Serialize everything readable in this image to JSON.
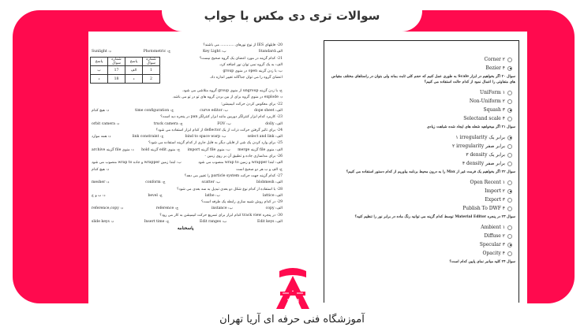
{
  "brand_color": "#ff0a4e",
  "title": "سوالات تری دی مکس با جواب",
  "footer": "آموزشگاه فنی حرفه ای آریا تهران",
  "logo_text": "آریا تهران",
  "left_page": {
    "lines": [
      {
        "t": "q",
        "text": "20- فایلهای IES از نوع نورهای ............ می باشند؟"
      },
      {
        "t": "c",
        "items": [
          "الف:Standard",
          "ب: Key Light",
          "ج: Photometric",
          "د: Sunlight"
        ]
      },
      {
        "t": "q",
        "text": "21- کدام گزینه در مورد اعضای یک گروه صحیح نیست؟"
      },
      {
        "t": "q",
        "text": "الف: به یک گروه نمی توان نور اضافه کرد."
      },
      {
        "t": "q",
        "text": "ب: با زدن گزینه open در منوی group"
      },
      {
        "t": "q",
        "text": "اعضای گروه را می توان جداگانه تغییر اندازه داد."
      },
      {
        "t": "q",
        "text": ""
      },
      {
        "t": "q",
        "text": "ج: با زدن گزینه ungroup از منوی group گروه متلاشی می شود."
      },
      {
        "t": "q",
        "text": "د: explode در منوی گروه برای از بین بردن گروه های تو در تو می باشد."
      },
      {
        "t": "q",
        "text": "22- برای معکوس کردن حرکت انیمیشن؛"
      },
      {
        "t": "c",
        "items": [
          "الف: dope sheet",
          "ب: curve editor",
          "ج: time configuration",
          "د: هیچ کدام"
        ]
      },
      {
        "t": "q",
        "text": "23- کاربرد کدام ابزار کنترلگر دوربین مانند ابزار کنترلگر pan در پنجره دید است؟"
      },
      {
        "t": "c",
        "items": [
          "الف: dolly",
          "ب: FOV",
          "ج: truck camera",
          "د: orbit camera"
        ]
      },
      {
        "t": "q",
        "text": "24- برای تاثیر گرفتن حرکت ذرات از یک deflector از کدام ابزار استفاده می شود؟"
      },
      {
        "t": "c",
        "items": [
          "الف: select and link",
          "ب: bind to space warp",
          "ج: link constraint",
          "د: همه موارد"
        ]
      },
      {
        "t": "q",
        "text": "25- برای وارد کردن یک شی از فایلی دیگر به فایل جاری از کدام گزینه استفاده می شود؟"
      },
      {
        "t": "c",
        "items": [
          "الف: منوی file گزینه merge",
          "ب: منوی file گزینه import",
          "ج: منوی edit گزینه hold",
          "د: منوی file گزینه archive"
        ]
      },
      {
        "t": "q",
        "text": "26- برای مدلسازی جاده و تطبیق آن بر روی زمین -"
      },
      {
        "t": "c",
        "items": [
          "الف: ابتدا wrapper و زمین wrap to منصوب می شود",
          "ب: ابتدا زمین wrapper و جاده wrap to منصوب می شود"
        ]
      },
      {
        "t": "c",
        "items": [
          "ج: الف و ب هر دو صحیح است",
          "د: هیچ کدام"
        ]
      },
      {
        "t": "q",
        "text": "27- کدام گزینه جهت حرکت particle system را تغییر می دهد؟"
      },
      {
        "t": "c",
        "items": [
          "الف: blobmesh",
          "ب: scatter",
          "ج: conform",
          "د: mesher"
        ]
      },
      {
        "t": "q",
        "text": "28- با استفاده از کدام نوع شکل دو بعدی تبدیل به سه بعدی می شود؟"
      },
      {
        "t": "c",
        "items": [
          "الف: lattice",
          "ب: lathe",
          "ج: bevel",
          "د: ب و ج"
        ]
      },
      {
        "t": "q",
        "text": "29- در کدام روش شبیه سازی رابطه یک طرفه است؟"
      },
      {
        "t": "c",
        "items": [
          "الف: copy",
          "ب: instance",
          "ج: reference",
          "د: reference,copy"
        ]
      },
      {
        "t": "q",
        "text": "30- در پنجره track view کدام ابزار برای تسریع حرکت انیمیشن به کار می رود؟"
      },
      {
        "t": "c",
        "items": [
          "الف: Edit keys",
          "ب: Edit ranges",
          "ج: Insert time",
          "د: slide keys"
        ]
      }
    ],
    "answer_key": "پاسخنامه",
    "table": [
      [
        "شماره سوال",
        "پاسخ",
        "شماره سوال",
        "پاسخ"
      ],
      [
        "1",
        "الف",
        "17",
        "ب"
      ],
      [
        "2",
        "د",
        "18",
        "د"
      ]
    ]
  },
  "right_page": {
    "blocks": [
      {
        "options": [
          {
            "label": "Corner ۲",
            "checked": false
          },
          {
            "label": "Bezier ۴",
            "checked": true
          }
        ]
      },
      {
        "question": "سوال ۲۰ اگر بخواهیم در ابزار Scale به طوری عمل کنیم که حجم کلی ثابت بماند ولی بتوان در راستاهای مختلف مقیاس های متفاوتی را اعمال نمود از کدام حالت استفاده می کنیم؟",
        "options": [
          {
            "label": "UniForm ۱",
            "checked": false
          },
          {
            "label": "Non-Uniform ۲",
            "checked": false
          },
          {
            "label": "Squash ۳",
            "checked": true
          },
          {
            "label": "Selectand scale ۴",
            "checked": false
          }
        ]
      },
      {
        "question": "سوال ۲۱ اگر میخواهید شعله های ایجاد شده شباهت زیادی",
        "options": [
          {
            "label": "۱ irregularity برابر یک",
            "checked": true
          },
          {
            "label": "۲ irregularity برابر صفر",
            "checked": false
          },
          {
            "label": "۳ density برابر یک",
            "checked": false
          },
          {
            "label": "۴ density برابر صفر",
            "checked": false
          }
        ]
      },
      {
        "question": "سوال ۲۲ اگر بخواهیم یک فرمت غیر از Max را به درون محیط برنامه بیاوریم از کدام دستور استفاده می کنیم؟",
        "options": [
          {
            "label": "Open Recent ۱",
            "checked": false
          },
          {
            "label": "Import ۲",
            "checked": true
          },
          {
            "label": "Export ۳",
            "checked": false
          },
          {
            "label": "Publish To DWF ۴",
            "checked": false
          }
        ]
      },
      {
        "question": "سوال ۲۳ در پنجره Material Editor توسط کدام گزینه می توانید رنگ ماده در برابر نور را تنظیم کنید؟",
        "options": [
          {
            "label": "Ambient ۱",
            "checked": false
          },
          {
            "label": "Diffuse ۲",
            "checked": false
          },
          {
            "label": "Specular ۳",
            "checked": true
          },
          {
            "label": "Opacity ۴",
            "checked": false
          }
        ]
      },
      {
        "question": "سوال ۲۴ کلید میانبر نمای پایین کدام است؟",
        "options": []
      }
    ]
  }
}
